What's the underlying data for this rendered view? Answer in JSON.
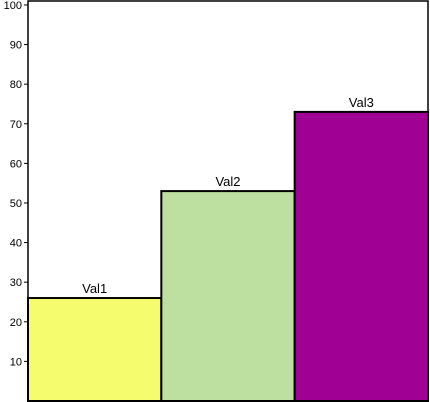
{
  "chart_data": {
    "type": "bar",
    "categories": [
      "Val1",
      "Val2",
      "Val3"
    ],
    "values": [
      26,
      53,
      73
    ],
    "colors": [
      "#f5fd6f",
      "#bddf9f",
      "#a00094"
    ],
    "bar_labels": [
      "Val1",
      "Val2",
      "Val3"
    ],
    "ylim": [
      0,
      101
    ],
    "yticks": [
      10,
      20,
      30,
      40,
      50,
      60,
      70,
      80,
      90,
      100
    ],
    "ytick_labels": [
      "10",
      "20",
      "30",
      "40",
      "50",
      "60",
      "70",
      "80",
      "90",
      "100"
    ],
    "xlabel": "",
    "ylabel": "",
    "title": "",
    "grid": false,
    "legend": "none"
  }
}
